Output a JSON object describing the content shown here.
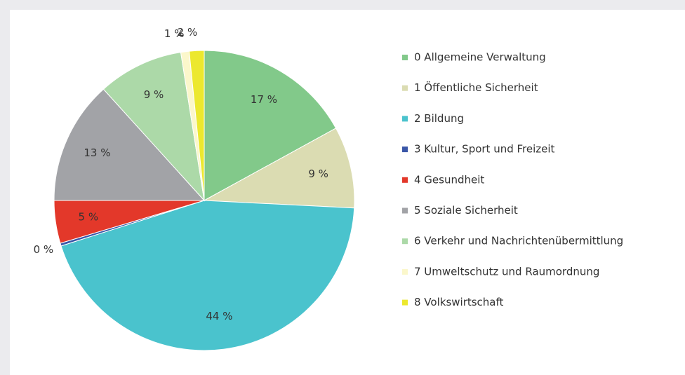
{
  "chart_data": {
    "type": "pie",
    "categories": [
      "0  Allgemeine Verwaltung",
      "1  Öffentliche Sicherheit",
      "2  Bildung",
      "3  Kultur, Sport und Freizeit",
      "4  Gesundheit",
      "5  Soziale Sicherheit",
      "6  Verkehr und Nachrichtenübermittlung",
      "7  Umweltschutz und Raumordnung",
      "8  Volkswirtschaft"
    ],
    "values": [
      17,
      8.8,
      44.3,
      0.3,
      4.6,
      13.3,
      9.2,
      0.9,
      1.6
    ],
    "value_labels": [
      "17 %",
      "9 %",
      "44 %",
      "0 %",
      "5 %",
      "13 %",
      "9 %",
      "1 %",
      "2 %"
    ],
    "colors": [
      "#82c98a",
      "#dbdcb2",
      "#4ac3cd",
      "#3a57a8",
      "#e3382a",
      "#a2a3a7",
      "#acd9a8",
      "#fbf7cb",
      "#ece82e"
    ],
    "legend": "right"
  }
}
